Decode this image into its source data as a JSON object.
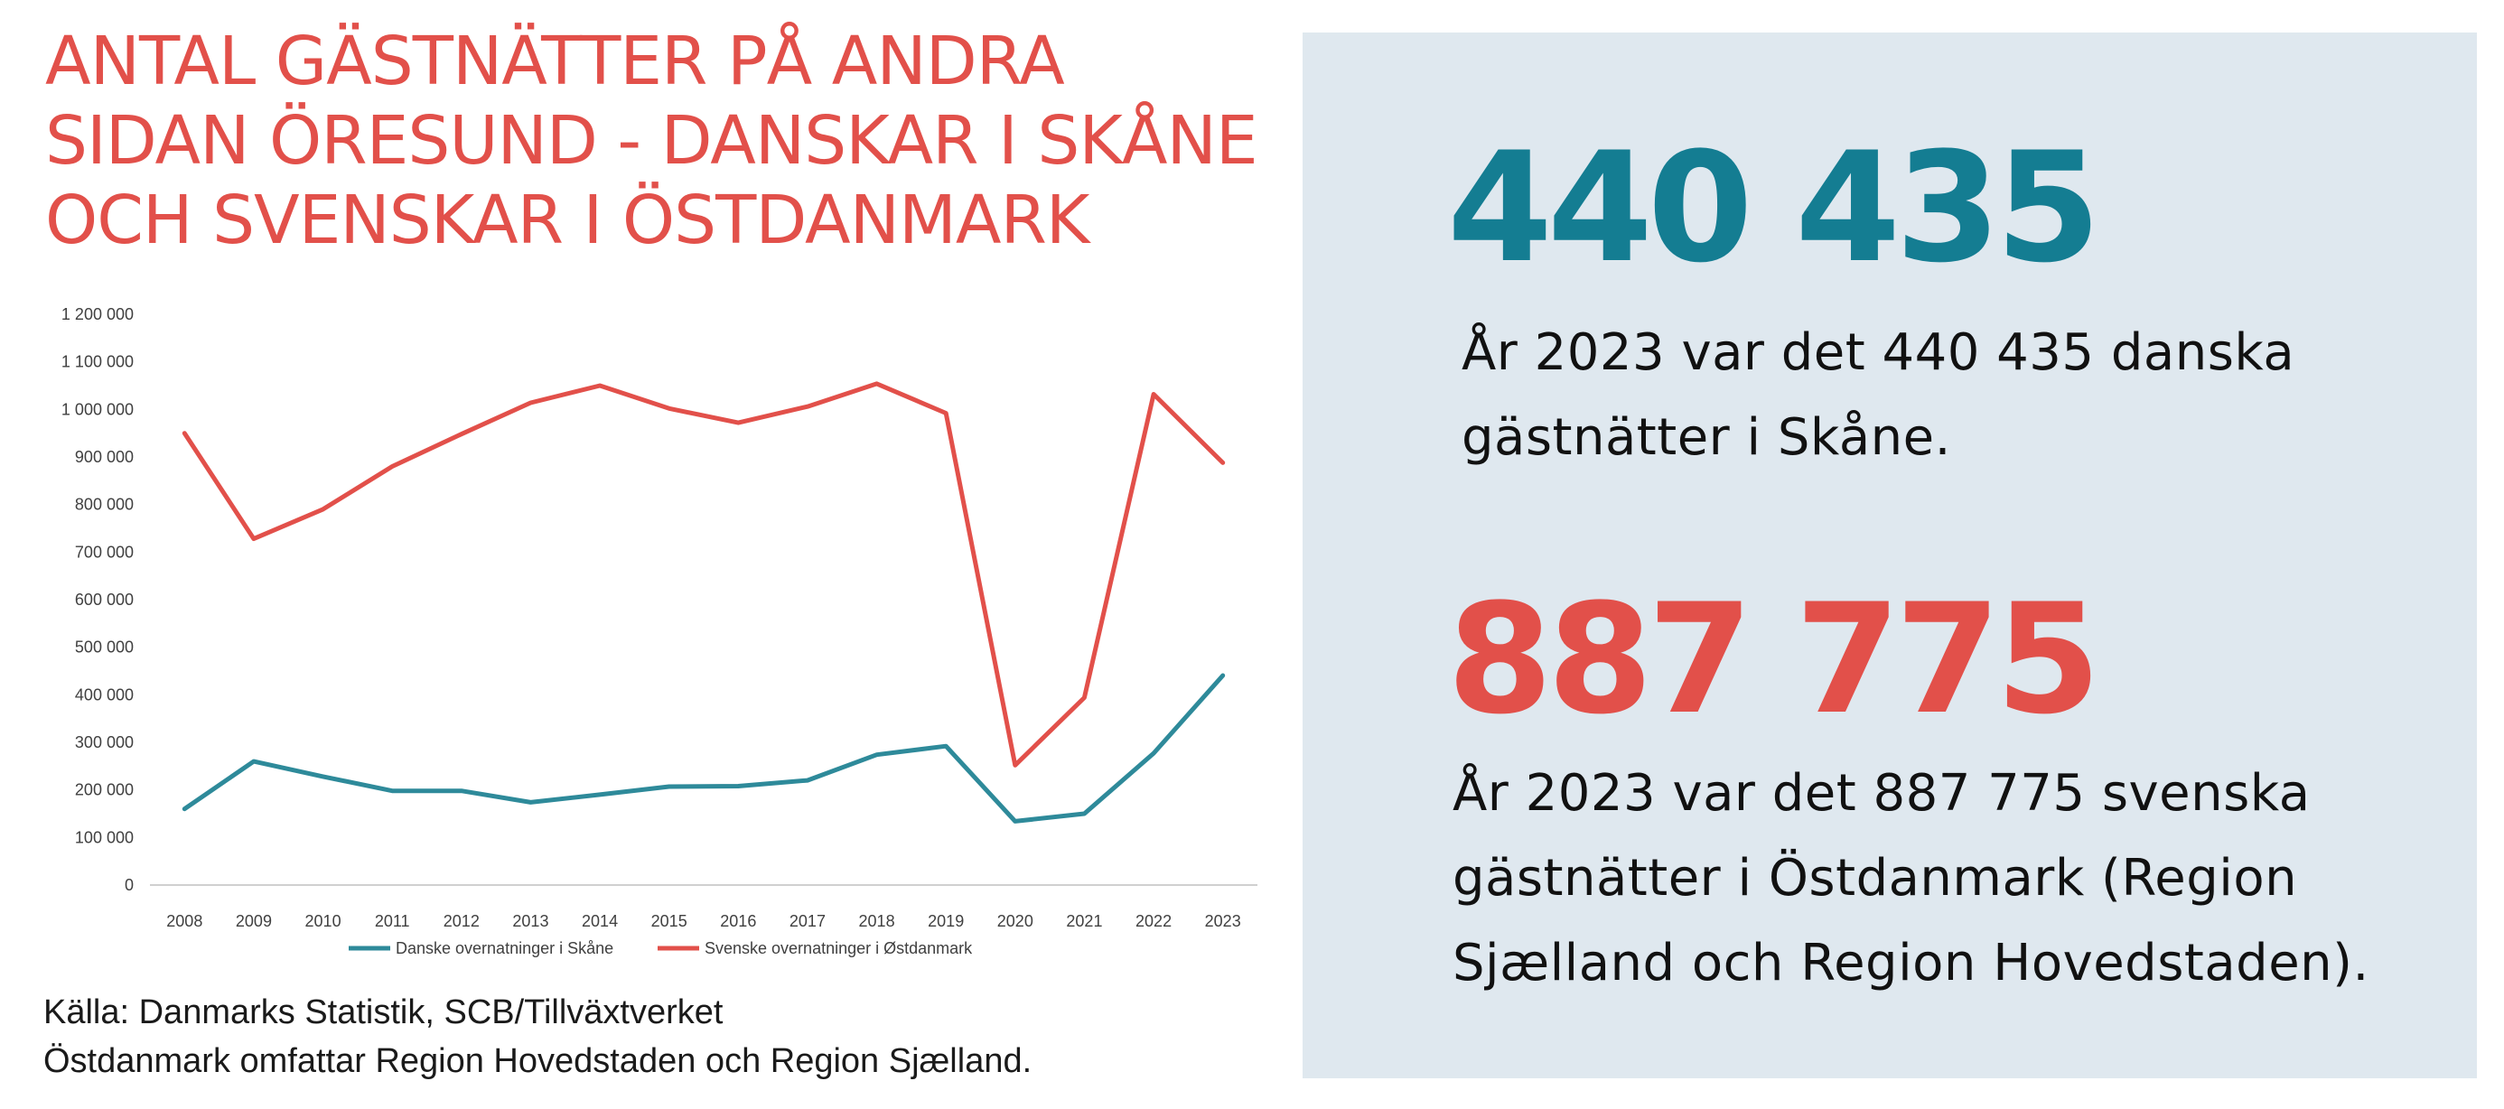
{
  "title_lines": [
    "ANTAL GÄSTNÄTTER PÅ ANDRA",
    "SIDAN ÖRESUND - DANSKAR I SKÅNE",
    "OCH SVENSKAR I ÖSTDANMARK"
  ],
  "source_lines": [
    "Källa: Danmarks Statistik, SCB/Tillväxtverket",
    "Östdanmark omfattar Region Hovedstaden och Region Sjælland."
  ],
  "stats": [
    {
      "value": "440 435",
      "color": "#147d92",
      "desc_lines": [
        "År 2023 var det 440 435 danska",
        "gästnätter i Skåne."
      ]
    },
    {
      "value": "887 775",
      "color": "#e2504a",
      "desc_lines": [
        "År 2023 var det 887 775 svenska",
        "gästnätter i Östdanmark (Region",
        "Sjælland och Region Hovedstaden)."
      ]
    }
  ],
  "colors": {
    "title": "#e2504a",
    "panel_bg": "#dfe8ef",
    "teal": "#2e8a9a",
    "red": "#e2504a"
  },
  "chart_data": {
    "type": "line",
    "title": "",
    "xlabel": "",
    "ylabel": "",
    "categories": [
      "2008",
      "2009",
      "2010",
      "2011",
      "2012",
      "2013",
      "2014",
      "2015",
      "2016",
      "2017",
      "2018",
      "2019",
      "2020",
      "2021",
      "2022",
      "2023"
    ],
    "series": [
      {
        "name": "Danske overnatninger i Skåne",
        "color": "#2e8a9a",
        "values": [
          160000,
          260000,
          228000,
          198000,
          198000,
          174000,
          190000,
          207000,
          208000,
          220000,
          274000,
          292000,
          134000,
          150000,
          277000,
          440435
        ]
      },
      {
        "name": "Svenske overnatninger i Østdanmark",
        "color": "#e2504a",
        "values": [
          950000,
          728000,
          790000,
          880000,
          948000,
          1014000,
          1050000,
          1002000,
          972000,
          1006000,
          1054000,
          992000,
          252000,
          394000,
          1032000,
          887775
        ]
      }
    ],
    "ylim": [
      0,
      1200000
    ],
    "yticks": [
      "0",
      "100 000",
      "200 000",
      "300 000",
      "400 000",
      "500 000",
      "600 000",
      "700 000",
      "800 000",
      "900 000",
      "1 000 000",
      "1 100 000",
      "1 200 000"
    ],
    "grid": false,
    "legend_position": "bottom"
  }
}
